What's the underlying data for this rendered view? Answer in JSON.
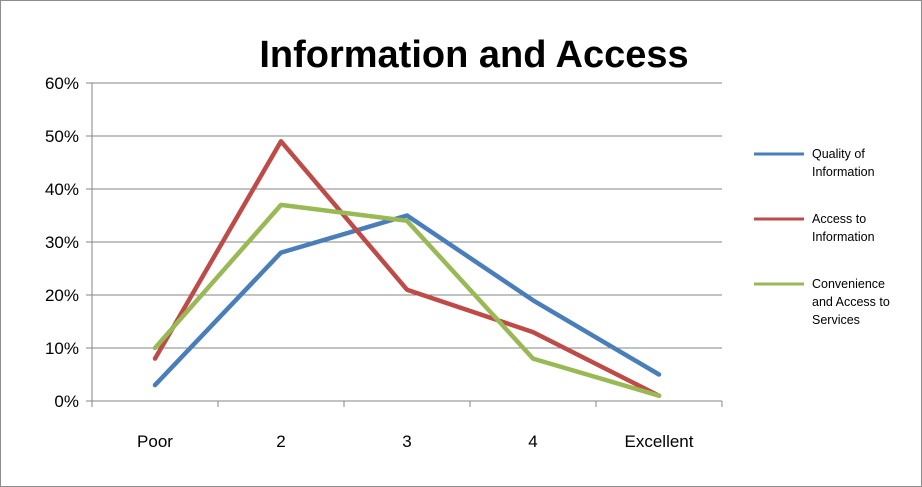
{
  "chart_data": {
    "type": "line",
    "title": "Information and Access",
    "categories": [
      "Poor",
      "2",
      "3",
      "4",
      "Excellent"
    ],
    "ylim": [
      0,
      60
    ],
    "yticks": [
      "0%",
      "10%",
      "20%",
      "30%",
      "40%",
      "50%",
      "60%"
    ],
    "grid": true,
    "legend_position": "right",
    "series": [
      {
        "name": "Quality of Information",
        "legend_lines": [
          "Quality of",
          "Information"
        ],
        "color": "#4a7ebb",
        "values": [
          3,
          28,
          35,
          19,
          5
        ]
      },
      {
        "name": "Access to Information",
        "legend_lines": [
          "Access to",
          "Information"
        ],
        "color": "#be4b48",
        "values": [
          8,
          49,
          21,
          13,
          1
        ]
      },
      {
        "name": "Convenience and Access to Services",
        "legend_lines": [
          "Convenience",
          "and Access to",
          "Services"
        ],
        "color": "#98b954",
        "values": [
          10,
          37,
          34,
          8,
          1
        ]
      }
    ]
  }
}
